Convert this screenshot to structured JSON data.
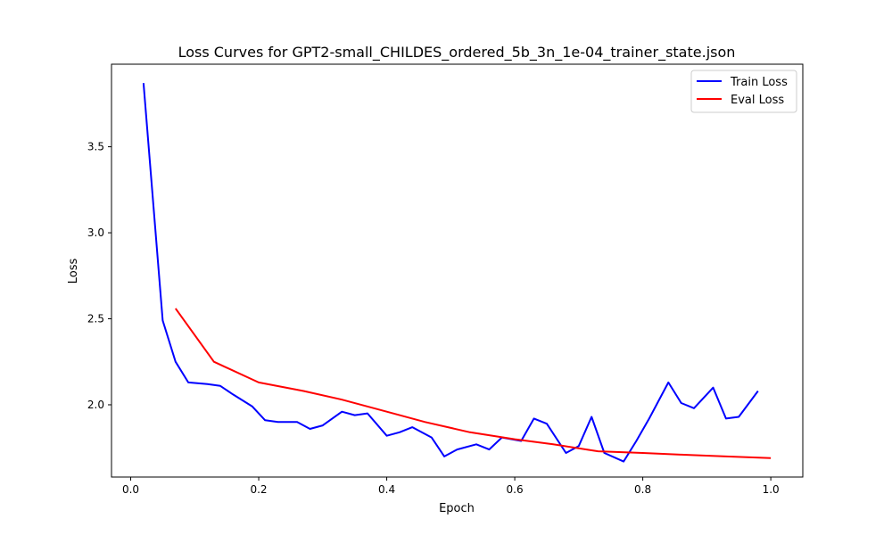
{
  "chart_data": {
    "type": "line",
    "title": "Loss Curves for GPT2-small_CHILDES_ordered_5b_3n_1e-04_trainer_state.json",
    "xlabel": "Epoch",
    "ylabel": "Loss",
    "xlim": [
      -0.03,
      1.05
    ],
    "ylim": [
      1.58,
      3.98
    ],
    "xticks": [
      {
        "value": 0.0,
        "label": "0.0"
      },
      {
        "value": 0.2,
        "label": "0.2"
      },
      {
        "value": 0.4,
        "label": "0.4"
      },
      {
        "value": 0.6,
        "label": "0.6"
      },
      {
        "value": 0.8,
        "label": "0.8"
      },
      {
        "value": 1.0,
        "label": "1.0"
      }
    ],
    "yticks": [
      {
        "value": 2.0,
        "label": "2.0"
      },
      {
        "value": 2.5,
        "label": "2.5"
      },
      {
        "value": 3.0,
        "label": "3.0"
      },
      {
        "value": 3.5,
        "label": "3.5"
      }
    ],
    "legend_position": "top-right",
    "series": [
      {
        "name": "Train Loss",
        "color": "#0000ff",
        "x": [
          0.02,
          0.05,
          0.07,
          0.09,
          0.12,
          0.14,
          0.16,
          0.19,
          0.21,
          0.23,
          0.26,
          0.28,
          0.3,
          0.33,
          0.35,
          0.37,
          0.4,
          0.42,
          0.44,
          0.47,
          0.49,
          0.51,
          0.54,
          0.56,
          0.58,
          0.61,
          0.63,
          0.65,
          0.68,
          0.7,
          0.72,
          0.74,
          0.77,
          0.79,
          0.81,
          0.84,
          0.86,
          0.88,
          0.91,
          0.93,
          0.95,
          0.98
        ],
        "y": [
          3.87,
          2.49,
          2.25,
          2.13,
          2.12,
          2.11,
          2.06,
          1.99,
          1.91,
          1.9,
          1.9,
          1.86,
          1.88,
          1.96,
          1.94,
          1.95,
          1.82,
          1.84,
          1.87,
          1.81,
          1.7,
          1.74,
          1.77,
          1.74,
          1.81,
          1.79,
          1.92,
          1.89,
          1.72,
          1.76,
          1.93,
          1.72,
          1.67,
          1.79,
          1.92,
          2.13,
          2.01,
          1.98,
          2.1,
          1.92,
          1.93,
          2.08
        ]
      },
      {
        "name": "Eval Loss",
        "color": "#ff0000",
        "x": [
          0.07,
          0.13,
          0.2,
          0.27,
          0.33,
          0.4,
          0.46,
          0.53,
          0.6,
          0.66,
          0.73,
          0.8,
          0.86,
          0.93,
          1.0
        ],
        "y": [
          2.56,
          2.25,
          2.13,
          2.08,
          2.03,
          1.96,
          1.9,
          1.84,
          1.8,
          1.77,
          1.73,
          1.72,
          1.71,
          1.7,
          1.69
        ]
      }
    ]
  }
}
